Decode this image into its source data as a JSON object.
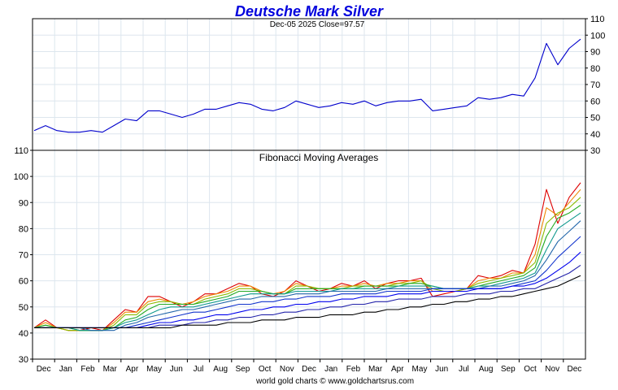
{
  "chart_data": {
    "type": "line",
    "title": "Deutsche Mark Silver",
    "subtitle": "Dec-05  2025   Close=97.57",
    "footer": "world gold charts © www.goldchartsrus.com",
    "title_color": "#0000dd",
    "months": [
      "Dec",
      "Jan",
      "Feb",
      "Mar",
      "Apr",
      "May",
      "Jun",
      "Jul",
      "Aug",
      "Sep",
      "Oct",
      "Nov",
      "Dec",
      "Jan",
      "Feb",
      "Mar",
      "Apr",
      "May",
      "Jun",
      "Jul",
      "Aug",
      "Sep",
      "Oct",
      "Nov",
      "Dec"
    ],
    "top_panel": {
      "ylim": [
        30,
        110
      ],
      "yticks": [
        30,
        40,
        50,
        60,
        70,
        80,
        90,
        100,
        110
      ],
      "grid": true,
      "series": [
        {
          "color": "#0000cc",
          "values": [
            42,
            45,
            42,
            41,
            41,
            42,
            41,
            45,
            49,
            48,
            54,
            54,
            52,
            50,
            52,
            55,
            55,
            57,
            59,
            58,
            55,
            54,
            56,
            60,
            58,
            56,
            57,
            59,
            58,
            60,
            57,
            59,
            60,
            60,
            61,
            54,
            55,
            56,
            57,
            62,
            61,
            62,
            64,
            63,
            74,
            95,
            82,
            92,
            97.57
          ]
        }
      ]
    },
    "bottom_panel": {
      "title": "Fibonacci Moving Averages",
      "ylim": [
        30,
        110
      ],
      "yticks": [
        30,
        40,
        50,
        60,
        70,
        80,
        90,
        100,
        110
      ],
      "grid": true,
      "series": [
        {
          "color": "#dd0000",
          "values": [
            42,
            45,
            42,
            41,
            41,
            42,
            41,
            45,
            49,
            48,
            54,
            54,
            52,
            50,
            52,
            55,
            55,
            57,
            59,
            58,
            55,
            54,
            56,
            60,
            58,
            56,
            57,
            59,
            58,
            60,
            57,
            59,
            60,
            60,
            61,
            54,
            55,
            56,
            57,
            62,
            61,
            62,
            64,
            63,
            74,
            95,
            82,
            92,
            97.57
          ]
        },
        {
          "color": "#ee8800",
          "values": [
            42,
            44,
            42,
            41,
            41,
            41,
            41,
            44,
            48,
            48,
            52,
            53,
            52,
            51,
            52,
            54,
            55,
            56,
            58,
            58,
            56,
            55,
            56,
            59,
            58,
            57,
            57,
            58,
            58,
            59,
            58,
            59,
            59,
            60,
            60,
            56,
            56,
            56,
            57,
            60,
            61,
            61,
            63,
            63,
            70,
            88,
            85,
            90,
            95
          ]
        },
        {
          "color": "#88bb00",
          "values": [
            42,
            43,
            42,
            41,
            41,
            41,
            41,
            43,
            47,
            47,
            51,
            52,
            52,
            51,
            51,
            53,
            54,
            55,
            57,
            57,
            56,
            55,
            55,
            58,
            58,
            57,
            57,
            57,
            58,
            58,
            58,
            58,
            59,
            59,
            60,
            57,
            56,
            56,
            57,
            59,
            60,
            61,
            62,
            63,
            67,
            82,
            86,
            88,
            92
          ]
        },
        {
          "color": "#22aa22",
          "values": [
            42,
            43,
            42,
            42,
            41,
            41,
            41,
            42,
            45,
            46,
            49,
            51,
            51,
            51,
            51,
            52,
            53,
            54,
            56,
            56,
            56,
            55,
            55,
            57,
            57,
            57,
            57,
            57,
            57,
            58,
            58,
            58,
            58,
            59,
            59,
            58,
            57,
            57,
            57,
            58,
            59,
            60,
            61,
            62,
            65,
            77,
            84,
            86,
            89
          ]
        },
        {
          "color": "#11998e",
          "values": [
            42,
            42,
            42,
            42,
            41,
            41,
            41,
            42,
            44,
            45,
            47,
            49,
            50,
            50,
            50,
            51,
            52,
            53,
            54,
            55,
            55,
            55,
            55,
            56,
            56,
            56,
            56,
            57,
            57,
            57,
            57,
            57,
            58,
            58,
            58,
            58,
            57,
            57,
            57,
            58,
            58,
            59,
            60,
            61,
            63,
            72,
            80,
            83,
            86
          ]
        },
        {
          "color": "#2266aa",
          "values": [
            42,
            42,
            42,
            42,
            42,
            41,
            41,
            41,
            43,
            44,
            46,
            47,
            48,
            49,
            49,
            50,
            51,
            52,
            53,
            53,
            54,
            54,
            54,
            55,
            55,
            55,
            56,
            56,
            56,
            56,
            56,
            57,
            57,
            57,
            57,
            57,
            57,
            57,
            57,
            57,
            58,
            58,
            59,
            60,
            62,
            68,
            75,
            79,
            83
          ]
        },
        {
          "color": "#1133cc",
          "values": [
            42,
            42,
            42,
            42,
            42,
            42,
            42,
            42,
            42,
            43,
            44,
            45,
            46,
            47,
            48,
            48,
            49,
            50,
            51,
            51,
            52,
            52,
            53,
            53,
            54,
            54,
            54,
            55,
            55,
            55,
            55,
            56,
            56,
            56,
            56,
            57,
            57,
            57,
            57,
            57,
            57,
            57,
            58,
            59,
            60,
            64,
            69,
            73,
            77
          ]
        },
        {
          "color": "#0000ee",
          "values": [
            42,
            42,
            42,
            42,
            42,
            42,
            42,
            42,
            42,
            42,
            43,
            44,
            44,
            45,
            45,
            46,
            47,
            47,
            48,
            49,
            49,
            50,
            50,
            51,
            51,
            52,
            52,
            53,
            53,
            54,
            54,
            54,
            55,
            55,
            55,
            56,
            56,
            56,
            56,
            57,
            57,
            57,
            58,
            58,
            59,
            61,
            64,
            67,
            71
          ]
        },
        {
          "color": "#2222aa",
          "values": [
            42,
            42,
            42,
            42,
            42,
            42,
            42,
            42,
            42,
            42,
            42,
            43,
            43,
            43,
            44,
            44,
            45,
            45,
            46,
            46,
            47,
            47,
            48,
            48,
            49,
            49,
            50,
            50,
            51,
            51,
            52,
            52,
            53,
            53,
            53,
            54,
            54,
            54,
            55,
            55,
            55,
            56,
            56,
            57,
            57,
            59,
            61,
            63,
            66
          ]
        },
        {
          "color": "#000000",
          "values": [
            42,
            42,
            42,
            42,
            42,
            42,
            42,
            42,
            42,
            42,
            42,
            42,
            42,
            43,
            43,
            43,
            43,
            44,
            44,
            44,
            45,
            45,
            45,
            46,
            46,
            46,
            47,
            47,
            47,
            48,
            48,
            49,
            49,
            50,
            50,
            51,
            51,
            52,
            52,
            53,
            53,
            54,
            54,
            55,
            56,
            57,
            58,
            60,
            62
          ]
        }
      ]
    }
  }
}
